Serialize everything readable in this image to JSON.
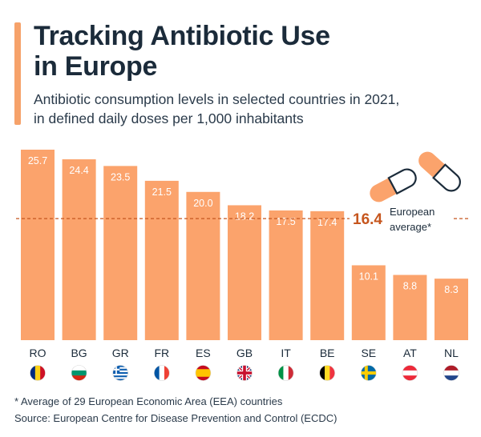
{
  "header": {
    "title_line1": "Tracking Antibiotic Use",
    "title_line2": "in Europe",
    "subtitle_line1": "Antibiotic consumption levels in selected countries in 2021,",
    "subtitle_line2": "in defined daily doses per 1,000 inhabitants"
  },
  "colors": {
    "bar": "#fba36c",
    "accent": "#f6a26a",
    "average_line": "#c6561e",
    "average_value": "#c6561e",
    "title": "#1b2b3a",
    "text": "#2a3a4a"
  },
  "icons": [
    "pill-capsule-icon",
    "pill-capsule-icon"
  ],
  "chart_data": {
    "type": "bar",
    "categories": [
      "RO",
      "BG",
      "GR",
      "FR",
      "ES",
      "GB",
      "IT",
      "BE",
      "SE",
      "AT",
      "NL"
    ],
    "values": [
      25.7,
      24.4,
      23.5,
      21.5,
      20.0,
      18.2,
      17.5,
      17.4,
      10.1,
      8.8,
      8.3
    ],
    "value_labels": [
      "25.7",
      "24.4",
      "23.5",
      "21.5",
      "20.0",
      "18.2",
      "17.5",
      "17.4",
      "10.1",
      "8.8",
      "8.3"
    ],
    "flags": [
      "flag-romania-icon",
      "flag-bulgaria-icon",
      "flag-greece-icon",
      "flag-france-icon",
      "flag-spain-icon",
      "flag-uk-icon",
      "flag-italy-icon",
      "flag-belgium-icon",
      "flag-sweden-icon",
      "flag-austria-icon",
      "flag-netherlands-icon"
    ],
    "reference_line": {
      "value": 16.4,
      "value_label": "16.4",
      "label_line1": "European",
      "label_line2": "average*"
    },
    "ylim": [
      0,
      25.7
    ],
    "grid": false,
    "title": "Tracking Antibiotic Use in Europe",
    "xlabel": "",
    "ylabel": ""
  },
  "footer": {
    "note": "* Average of 29 European Economic Area (EEA) countries",
    "source": "Source: European Centre for Disease Prevention and Control (ECDC)"
  }
}
